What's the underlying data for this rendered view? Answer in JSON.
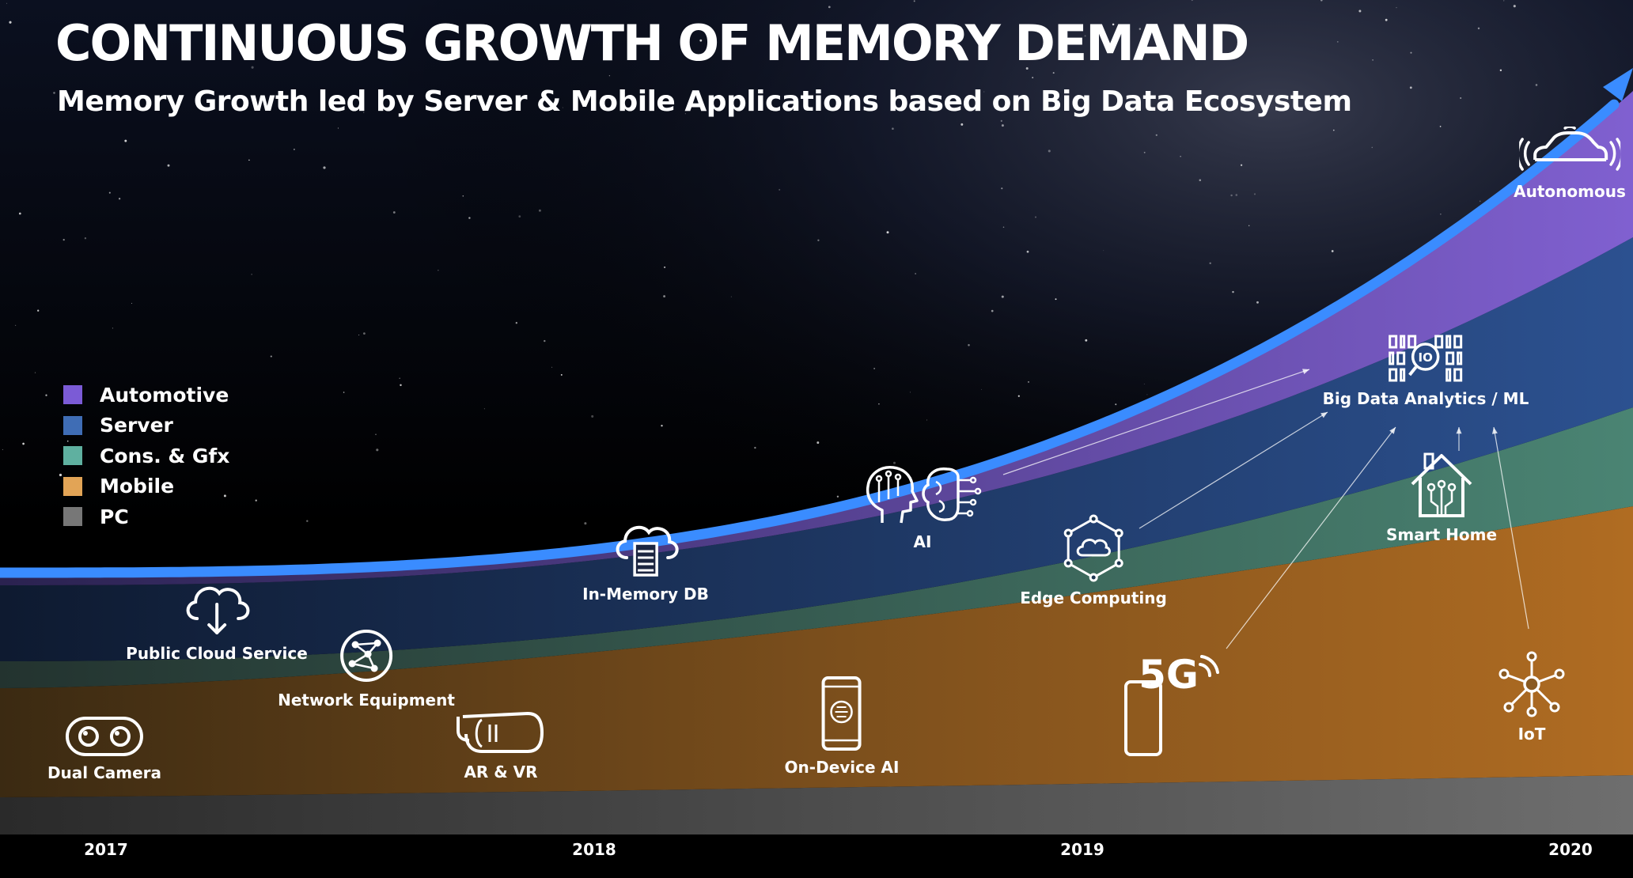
{
  "title": "CONTINUOUS GROWTH OF MEMORY DEMAND",
  "subtitle": "Memory Growth led by Server & Mobile Applications based on Big Data Ecosystem",
  "colors": {
    "automotive": "#7b5bd6",
    "server": "#3f6db5",
    "cons_gfx": "#5fb0a0",
    "mobile": "#e2a456",
    "pc": "#777777",
    "trend_line": "#3a8cff"
  },
  "chart_data": {
    "type": "area",
    "stacked": true,
    "x_axis": {
      "tick_labels": [
        "2017",
        "2018",
        "2019",
        "2020"
      ]
    },
    "y_axis": {
      "visible": false
    },
    "grid": false,
    "legend_position": "left",
    "legend": [
      "Automotive",
      "Server",
      "Cons. & Gfx",
      "Mobile",
      "PC"
    ],
    "applications": [
      {
        "label": "Dual Camera",
        "icon": "dual-camera-icon"
      },
      {
        "label": "Public Cloud Service",
        "icon": "cloud-download-icon"
      },
      {
        "label": "Network Equipment",
        "icon": "network-globe-icon"
      },
      {
        "label": "AR & VR",
        "icon": "vr-headset-icon"
      },
      {
        "label": "In-Memory DB",
        "icon": "cloud-database-icon"
      },
      {
        "label": "On-Device AI",
        "icon": "smartphone-brain-icon"
      },
      {
        "label": "AI",
        "icon": "ai-brain-icon"
      },
      {
        "label": "Edge Computing",
        "icon": "edge-computing-icon"
      },
      {
        "label": "5G",
        "icon": "5g-phone-icon"
      },
      {
        "label": "Big Data Analytics / ML",
        "icon": "big-data-icon"
      },
      {
        "label": "Smart Home",
        "icon": "smart-home-icon"
      },
      {
        "label": "IoT",
        "icon": "iot-network-icon"
      },
      {
        "label": "Autonomous",
        "icon": "autonomous-car-icon"
      }
    ]
  }
}
